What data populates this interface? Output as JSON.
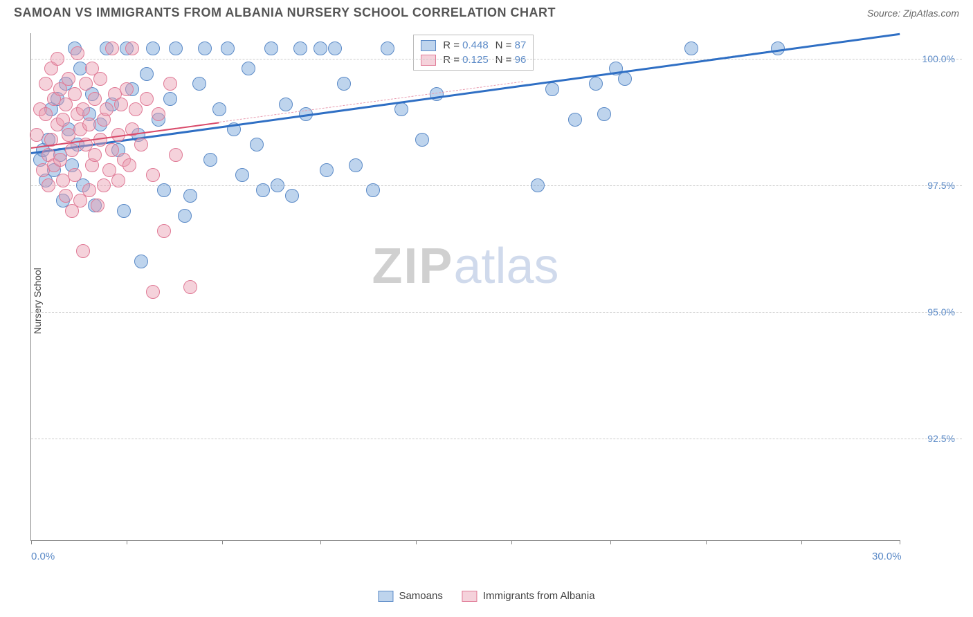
{
  "header": {
    "title": "SAMOAN VS IMMIGRANTS FROM ALBANIA NURSERY SCHOOL CORRELATION CHART",
    "source_prefix": "Source: ",
    "source": "ZipAtlas.com"
  },
  "chart": {
    "type": "scatter",
    "ylabel": "Nursery School",
    "background_color": "#ffffff",
    "grid_color": "#cccccc",
    "axis_color": "#888888",
    "xlim": [
      0,
      30
    ],
    "ylim": [
      90.5,
      100.5
    ],
    "xtick_positions": [
      0,
      3.3,
      6.6,
      10,
      13.3,
      16.6,
      20,
      23.3,
      26.6,
      30
    ],
    "xaxis_labels": [
      {
        "pos": 0,
        "text": "0.0%"
      },
      {
        "pos": 30,
        "text": "30.0%"
      }
    ],
    "yticks": [
      {
        "pos": 92.5,
        "label": "92.5%"
      },
      {
        "pos": 95.0,
        "label": "95.0%"
      },
      {
        "pos": 97.5,
        "label": "97.5%"
      },
      {
        "pos": 100.0,
        "label": "100.0%"
      }
    ],
    "marker_radius": 10,
    "marker_opacity": 0.55,
    "series": [
      {
        "key": "samoans",
        "name": "Samoans",
        "color": "#6f9fd8",
        "fill": "rgba(111,159,216,0.45)",
        "stroke": "#5b8ac7",
        "R": "0.448",
        "N": "87",
        "trend": {
          "x1": 0,
          "y1": 98.15,
          "x2": 30,
          "y2": 100.5,
          "color": "#2f6fc4",
          "width": 3,
          "dash": "solid"
        },
        "trend_dash": {
          "x1": 23.5,
          "y1": 100.0,
          "x2": 30,
          "y2": 100.5,
          "color": "#2f6fc4",
          "width": 2,
          "dash": "dashed"
        },
        "points": [
          [
            0.3,
            98.0
          ],
          [
            0.4,
            98.2
          ],
          [
            0.5,
            97.6
          ],
          [
            0.6,
            98.4
          ],
          [
            0.7,
            99.0
          ],
          [
            0.8,
            97.8
          ],
          [
            0.9,
            99.2
          ],
          [
            1.0,
            98.1
          ],
          [
            1.1,
            97.2
          ],
          [
            1.2,
            99.5
          ],
          [
            1.3,
            98.6
          ],
          [
            1.4,
            97.9
          ],
          [
            1.5,
            100.2
          ],
          [
            1.6,
            98.3
          ],
          [
            1.7,
            99.8
          ],
          [
            1.8,
            97.5
          ],
          [
            2.0,
            98.9
          ],
          [
            2.1,
            99.3
          ],
          [
            2.2,
            97.1
          ],
          [
            2.4,
            98.7
          ],
          [
            2.6,
            100.2
          ],
          [
            2.8,
            99.1
          ],
          [
            3.0,
            98.2
          ],
          [
            3.2,
            97.0
          ],
          [
            3.3,
            100.2
          ],
          [
            3.5,
            99.4
          ],
          [
            3.7,
            98.5
          ],
          [
            3.8,
            96.0
          ],
          [
            4.0,
            99.7
          ],
          [
            4.2,
            100.2
          ],
          [
            4.4,
            98.8
          ],
          [
            4.6,
            97.4
          ],
          [
            4.8,
            99.2
          ],
          [
            5.0,
            100.2
          ],
          [
            5.3,
            96.9
          ],
          [
            5.5,
            97.3
          ],
          [
            5.8,
            99.5
          ],
          [
            6.0,
            100.2
          ],
          [
            6.2,
            98.0
          ],
          [
            6.5,
            99.0
          ],
          [
            6.8,
            100.2
          ],
          [
            7.0,
            98.6
          ],
          [
            7.3,
            97.7
          ],
          [
            7.5,
            99.8
          ],
          [
            7.8,
            98.3
          ],
          [
            8.0,
            97.4
          ],
          [
            8.3,
            100.2
          ],
          [
            8.5,
            97.5
          ],
          [
            8.8,
            99.1
          ],
          [
            9.0,
            97.3
          ],
          [
            9.3,
            100.2
          ],
          [
            9.5,
            98.9
          ],
          [
            10.0,
            100.2
          ],
          [
            10.2,
            97.8
          ],
          [
            10.5,
            100.2
          ],
          [
            10.8,
            99.5
          ],
          [
            11.2,
            97.9
          ],
          [
            11.8,
            97.4
          ],
          [
            12.3,
            100.2
          ],
          [
            12.8,
            99.0
          ],
          [
            13.5,
            98.4
          ],
          [
            14.0,
            99.3
          ],
          [
            17.5,
            97.5
          ],
          [
            18.0,
            99.4
          ],
          [
            18.8,
            98.8
          ],
          [
            19.5,
            99.5
          ],
          [
            19.8,
            98.9
          ],
          [
            20.2,
            99.8
          ],
          [
            20.5,
            99.6
          ],
          [
            22.8,
            100.2
          ],
          [
            25.8,
            100.2
          ]
        ]
      },
      {
        "key": "albania",
        "name": "Immigrants from Albania",
        "color": "#e89cb0",
        "fill": "rgba(232,156,176,0.45)",
        "stroke": "#e07a96",
        "R": "0.125",
        "N": "96",
        "trend": {
          "x1": 0,
          "y1": 98.25,
          "x2": 6.5,
          "y2": 98.75,
          "color": "#d94a6a",
          "width": 2.5,
          "dash": "solid"
        },
        "trend_dash": {
          "x1": 6.5,
          "y1": 98.75,
          "x2": 17,
          "y2": 99.55,
          "color": "#e89cb0",
          "width": 1.5,
          "dash": "dashed"
        },
        "points": [
          [
            0.2,
            98.5
          ],
          [
            0.3,
            99.0
          ],
          [
            0.4,
            97.8
          ],
          [
            0.5,
            98.9
          ],
          [
            0.5,
            99.5
          ],
          [
            0.6,
            98.1
          ],
          [
            0.6,
            97.5
          ],
          [
            0.7,
            99.8
          ],
          [
            0.7,
            98.4
          ],
          [
            0.8,
            99.2
          ],
          [
            0.8,
            97.9
          ],
          [
            0.9,
            98.7
          ],
          [
            0.9,
            100.0
          ],
          [
            1.0,
            98.0
          ],
          [
            1.0,
            99.4
          ],
          [
            1.1,
            97.6
          ],
          [
            1.1,
            98.8
          ],
          [
            1.2,
            99.1
          ],
          [
            1.2,
            97.3
          ],
          [
            1.3,
            98.5
          ],
          [
            1.3,
            99.6
          ],
          [
            1.4,
            97.0
          ],
          [
            1.4,
            98.2
          ],
          [
            1.5,
            99.3
          ],
          [
            1.5,
            97.7
          ],
          [
            1.6,
            98.9
          ],
          [
            1.6,
            100.1
          ],
          [
            1.7,
            97.2
          ],
          [
            1.7,
            98.6
          ],
          [
            1.8,
            99.0
          ],
          [
            1.8,
            96.2
          ],
          [
            1.9,
            98.3
          ],
          [
            1.9,
            99.5
          ],
          [
            2.0,
            97.4
          ],
          [
            2.0,
            98.7
          ],
          [
            2.1,
            99.8
          ],
          [
            2.1,
            97.9
          ],
          [
            2.2,
            98.1
          ],
          [
            2.2,
            99.2
          ],
          [
            2.3,
            97.1
          ],
          [
            2.4,
            98.4
          ],
          [
            2.4,
            99.6
          ],
          [
            2.5,
            97.5
          ],
          [
            2.5,
            98.8
          ],
          [
            2.6,
            99.0
          ],
          [
            2.7,
            97.8
          ],
          [
            2.8,
            98.2
          ],
          [
            2.8,
            100.2
          ],
          [
            2.9,
            99.3
          ],
          [
            3.0,
            97.6
          ],
          [
            3.0,
            98.5
          ],
          [
            3.1,
            99.1
          ],
          [
            3.2,
            98.0
          ],
          [
            3.3,
            99.4
          ],
          [
            3.4,
            97.9
          ],
          [
            3.5,
            98.6
          ],
          [
            3.5,
            100.2
          ],
          [
            3.6,
            99.0
          ],
          [
            3.8,
            98.3
          ],
          [
            4.0,
            99.2
          ],
          [
            4.2,
            97.7
          ],
          [
            4.2,
            95.4
          ],
          [
            4.4,
            98.9
          ],
          [
            4.6,
            96.6
          ],
          [
            4.8,
            99.5
          ],
          [
            5.0,
            98.1
          ],
          [
            5.5,
            95.5
          ]
        ]
      }
    ],
    "watermark": {
      "part1": "ZIP",
      "part2": "atlas"
    }
  },
  "legend": {
    "r_label": "R = ",
    "n_label": "N = "
  }
}
